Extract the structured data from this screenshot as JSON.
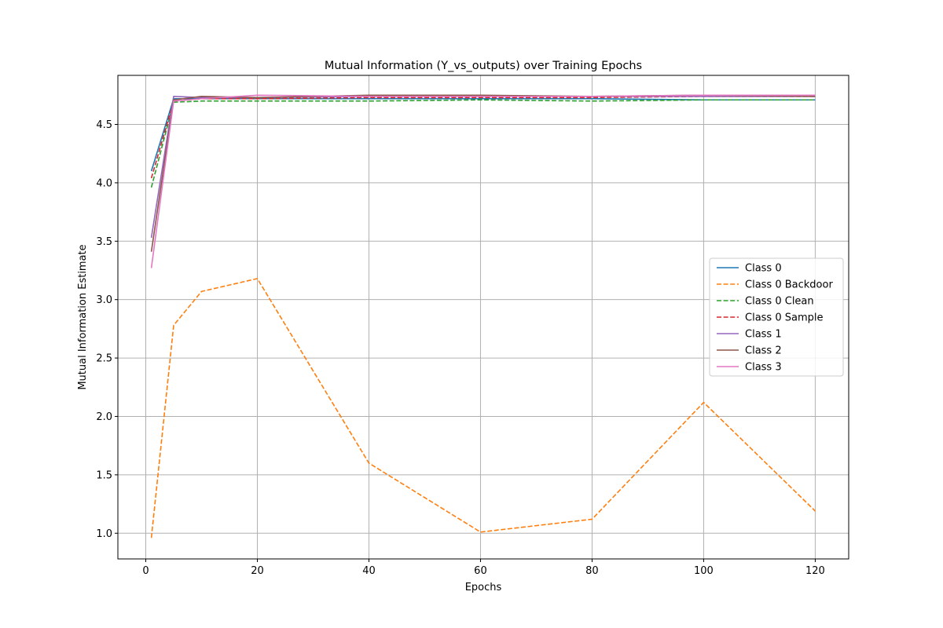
{
  "chart_data": {
    "type": "line",
    "title": "Mutual Information (Y_vs_outputs) over Training Epochs",
    "xlabel": "Epochs",
    "ylabel": "Mutual Information Estimate",
    "xlim": [
      -5,
      126
    ],
    "ylim": [
      0.78,
      4.92
    ],
    "xticks": [
      0,
      20,
      40,
      60,
      80,
      100,
      120
    ],
    "yticks": [
      1.0,
      1.5,
      2.0,
      2.5,
      3.0,
      3.5,
      4.0,
      4.5
    ],
    "ytick_labels": [
      "1.0",
      "1.5",
      "2.0",
      "2.5",
      "3.0",
      "3.5",
      "4.0",
      "4.5"
    ],
    "grid": true,
    "legend_position": "center-right",
    "x": [
      1,
      5,
      10,
      20,
      40,
      60,
      80,
      100,
      120
    ],
    "series": [
      {
        "name": "Class 0",
        "color": "#1f77b4",
        "dash": "solid",
        "values": [
          4.1,
          4.72,
          4.72,
          4.72,
          4.72,
          4.72,
          4.72,
          4.71,
          4.71
        ]
      },
      {
        "name": "Class 0 Backdoor",
        "color": "#ff7f0e",
        "dash": "dashed",
        "values": [
          0.96,
          2.78,
          3.07,
          3.18,
          1.6,
          1.01,
          1.12,
          2.12,
          1.19
        ]
      },
      {
        "name": "Class 0 Clean",
        "color": "#2ca02c",
        "dash": "dashed",
        "values": [
          3.96,
          4.69,
          4.7,
          4.7,
          4.7,
          4.71,
          4.7,
          4.71,
          4.71
        ]
      },
      {
        "name": "Class 0 Sample",
        "color": "#d62728",
        "dash": "dashed",
        "values": [
          4.04,
          4.7,
          4.72,
          4.72,
          4.73,
          4.73,
          4.73,
          4.74,
          4.74
        ]
      },
      {
        "name": "Class 1",
        "color": "#9467bd",
        "dash": "solid",
        "values": [
          3.53,
          4.74,
          4.73,
          4.73,
          4.74,
          4.74,
          4.74,
          4.74,
          4.74
        ]
      },
      {
        "name": "Class 2",
        "color": "#8c564b",
        "dash": "solid",
        "values": [
          3.41,
          4.71,
          4.74,
          4.73,
          4.75,
          4.75,
          4.74,
          4.75,
          4.74
        ]
      },
      {
        "name": "Class 3",
        "color": "#e377c2",
        "dash": "solid",
        "values": [
          3.27,
          4.7,
          4.72,
          4.75,
          4.74,
          4.74,
          4.74,
          4.75,
          4.75
        ]
      }
    ]
  }
}
